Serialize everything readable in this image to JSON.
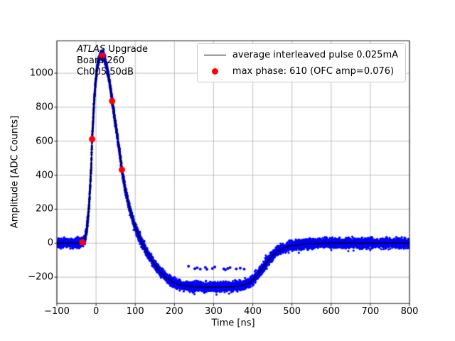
{
  "figure": {
    "background": "#ffffff"
  },
  "chart_data": {
    "type": "scatter",
    "title": "",
    "xlabel": "Time [ns]",
    "ylabel": "Amplitude [ADC Counts]",
    "xlim": [
      -100,
      800
    ],
    "ylim": [
      -355,
      1190
    ],
    "xticks": [
      -100,
      0,
      100,
      200,
      300,
      400,
      500,
      600,
      700,
      800
    ],
    "yticks": [
      -200,
      0,
      200,
      400,
      600,
      800,
      1000
    ],
    "grid": true,
    "grid_color": "#b0b0b0",
    "spine_color": "#000000",
    "annotation": {
      "line1_italic": "ATLAS",
      "line1_rest": " Upgrade",
      "line2": "Board 260",
      "line3": "Ch005 50dB"
    },
    "legend": {
      "position": "upper right",
      "entries": [
        {
          "label": "average interleaved pulse 0.025mA",
          "type": "line",
          "color": "#000000"
        },
        {
          "label": "max phase: 610 (OFC amp=0.076)",
          "type": "marker",
          "color": "#ff0000"
        }
      ]
    },
    "series": {
      "noise": {
        "name": "interleaved pulse samples",
        "color": "#0000ff",
        "marker_radius": 1.5,
        "noise_std": 12,
        "n_points": 12000
      },
      "average": {
        "name": "average interleaved pulse",
        "color": "#000000",
        "line_width": 1.5,
        "keypoints": [
          [
            -100,
            0
          ],
          [
            -50,
            0
          ],
          [
            -45,
            1
          ],
          [
            -40,
            2
          ],
          [
            -36,
            4
          ],
          [
            -33,
            8
          ],
          [
            -30,
            18
          ],
          [
            -27,
            38
          ],
          [
            -24,
            75
          ],
          [
            -21,
            135
          ],
          [
            -18,
            220
          ],
          [
            -15,
            330
          ],
          [
            -12,
            470
          ],
          [
            -10,
            612
          ],
          [
            -8,
            700
          ],
          [
            -6,
            790
          ],
          [
            -4,
            865
          ],
          [
            -2,
            925
          ],
          [
            0,
            975
          ],
          [
            2,
            1018
          ],
          [
            4,
            1050
          ],
          [
            6,
            1074
          ],
          [
            8,
            1090
          ],
          [
            10,
            1098
          ],
          [
            13,
            1103
          ],
          [
            16,
            1104
          ],
          [
            19,
            1098
          ],
          [
            22,
            1082
          ],
          [
            25,
            1058
          ],
          [
            28,
            1028
          ],
          [
            31,
            993
          ],
          [
            34,
            952
          ],
          [
            37,
            908
          ],
          [
            41,
            836
          ],
          [
            45,
            776
          ],
          [
            49,
            712
          ],
          [
            53,
            650
          ],
          [
            57,
            586
          ],
          [
            61,
            522
          ],
          [
            66,
            432
          ],
          [
            70,
            378
          ],
          [
            75,
            315
          ],
          [
            80,
            260
          ],
          [
            85,
            212
          ],
          [
            90,
            170
          ],
          [
            95,
            132
          ],
          [
            100,
            98
          ],
          [
            105,
            68
          ],
          [
            110,
            40
          ],
          [
            115,
            14
          ],
          [
            120,
            -10
          ],
          [
            125,
            -32
          ],
          [
            130,
            -54
          ],
          [
            136,
            -78
          ],
          [
            142,
            -100
          ],
          [
            148,
            -121
          ],
          [
            155,
            -143
          ],
          [
            162,
            -163
          ],
          [
            170,
            -183
          ],
          [
            178,
            -200
          ],
          [
            186,
            -214
          ],
          [
            195,
            -227
          ],
          [
            205,
            -238
          ],
          [
            215,
            -246
          ],
          [
            226,
            -251
          ],
          [
            238,
            -254
          ],
          [
            250,
            -256
          ],
          [
            265,
            -257
          ],
          [
            280,
            -258
          ],
          [
            300,
            -258
          ],
          [
            320,
            -258
          ],
          [
            338,
            -257
          ],
          [
            352,
            -255
          ],
          [
            364,
            -252
          ],
          [
            374,
            -248
          ],
          [
            382,
            -242
          ],
          [
            390,
            -233
          ],
          [
            397,
            -222
          ],
          [
            404,
            -207
          ],
          [
            411,
            -189
          ],
          [
            418,
            -168
          ],
          [
            425,
            -146
          ],
          [
            432,
            -124
          ],
          [
            439,
            -103
          ],
          [
            446,
            -84
          ],
          [
            453,
            -68
          ],
          [
            460,
            -54
          ],
          [
            467,
            -43
          ],
          [
            474,
            -34
          ],
          [
            482,
            -26
          ],
          [
            490,
            -20
          ],
          [
            500,
            -14
          ],
          [
            512,
            -10
          ],
          [
            525,
            -7
          ],
          [
            540,
            -4
          ],
          [
            560,
            -2
          ],
          [
            585,
            -1
          ],
          [
            610,
            0
          ],
          [
            700,
            0
          ],
          [
            800,
            0
          ]
        ]
      },
      "max_phase": {
        "name": "max phase samples",
        "color": "#ff0000",
        "marker_radius": 4.5,
        "points": [
          [
            -35,
            5
          ],
          [
            -10,
            612
          ],
          [
            16,
            1103
          ],
          [
            41,
            836
          ],
          [
            66,
            432
          ]
        ]
      },
      "outliers": {
        "name": "outlier samples",
        "color": "#0000ff",
        "marker_radius": 2,
        "points": [
          [
            236,
            -136
          ],
          [
            252,
            -150
          ],
          [
            258,
            -145
          ],
          [
            266,
            -152
          ],
          [
            279,
            -143
          ],
          [
            283,
            -154
          ],
          [
            297,
            -149
          ],
          [
            303,
            -140
          ],
          [
            326,
            -151
          ],
          [
            330,
            -157
          ],
          [
            336,
            -149
          ],
          [
            342,
            -144
          ],
          [
            358,
            -151
          ],
          [
            368,
            -147
          ],
          [
            378,
            -152
          ]
        ]
      }
    }
  }
}
